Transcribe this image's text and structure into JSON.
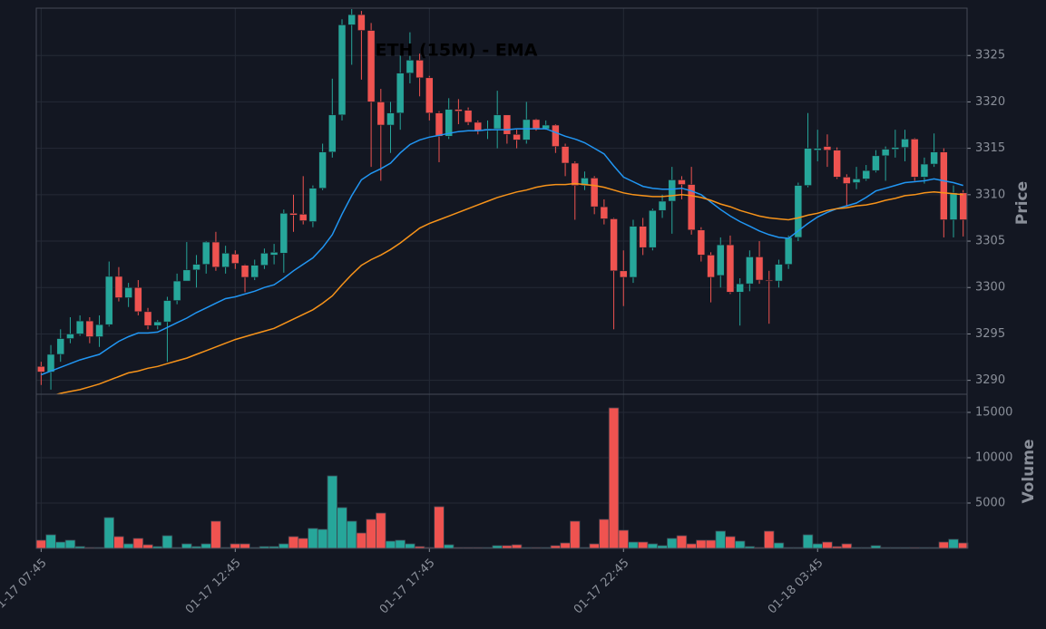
{
  "chart_data": [
    {
      "type": "candlestick",
      "title": "ETH (15M) - EMA",
      "ylabel": "Price",
      "up_color": "#26a69a",
      "down_color": "#ef5350",
      "grid": true,
      "xlim": [
        -0.5,
        95.4
      ],
      "ylim": [
        3288.5,
        3330.1
      ],
      "yticks": [
        3290,
        3295,
        3300,
        3305,
        3310,
        3315,
        3320,
        3325
      ],
      "open": [
        3291.5,
        3290.9,
        3292.8,
        3294.5,
        3295,
        3296.4,
        3294.7,
        3296,
        3301.2,
        3298.9,
        3300,
        3297.4,
        3295.9,
        3296.3,
        3298.6,
        3300.7,
        3301.9,
        3302.5,
        3304.9,
        3302.2,
        3303.6,
        3302.4,
        3301.1,
        3302.4,
        3303.5,
        3303.7,
        3308,
        3307.9,
        3307.1,
        3310.7,
        3314.6,
        3318.6,
        3328.3,
        3329.4,
        3327.7,
        3320,
        3317.5,
        3318.8,
        3323.1,
        3324.5,
        3322.6,
        3318.8,
        3316.3,
        3319.2,
        3319.1,
        3317.8,
        3316.9,
        3317.1,
        3318.6,
        3316.5,
        3315.9,
        3318.1,
        3317.1,
        3317.5,
        3315.2,
        3313.4,
        3311,
        3311.8,
        3308.7,
        3307.4,
        3301.8,
        3301.1,
        3306.6,
        3304.3,
        3308.3,
        3309.3,
        3311.6,
        3311.1,
        3306.2,
        3303.5,
        3301.3,
        3304.6,
        3299.5,
        3300.4,
        3303.3,
        3300.8,
        3300.7,
        3302.5,
        3305.4,
        3311,
        3314.8,
        3315.2,
        3314.8,
        3311.9,
        3311.3,
        3311.7,
        3312.6,
        3314.2,
        3314.9,
        3315.1,
        3316,
        3311.9,
        3313.3,
        3314.6,
        3307.3,
        3310.2
      ],
      "high": [
        3292,
        3293.8,
        3295.5,
        3296.8,
        3297,
        3296.8,
        3297,
        3302.8,
        3302.2,
        3300.5,
        3300.8,
        3297.8,
        3296.5,
        3299,
        3301.5,
        3304.9,
        3303.5,
        3305,
        3306,
        3304.5,
        3304,
        3302.5,
        3303,
        3304.2,
        3304.7,
        3308.4,
        3310,
        3312,
        3311,
        3315.5,
        3322.5,
        3328.9,
        3330,
        3329.8,
        3328.5,
        3321.4,
        3320,
        3325,
        3327.5,
        3325.2,
        3322.8,
        3319,
        3320.4,
        3320.3,
        3319.4,
        3318,
        3318,
        3321.2,
        3318.6,
        3317,
        3320,
        3318.2,
        3318,
        3317.6,
        3315.5,
        3313.6,
        3312.5,
        3312,
        3309.5,
        3307.5,
        3304,
        3307.3,
        3307.5,
        3308.5,
        3310,
        3313,
        3312,
        3313,
        3306.5,
        3303.8,
        3305.4,
        3305.6,
        3301,
        3304,
        3305,
        3301.8,
        3303,
        3305.6,
        3311.3,
        3318.8,
        3317,
        3316.5,
        3315.1,
        3312.2,
        3313,
        3313.2,
        3314.8,
        3315.2,
        3317,
        3317,
        3316.1,
        3314,
        3316.6,
        3315,
        3311,
        3310.5
      ],
      "low": [
        3289.5,
        3289,
        3292,
        3294,
        3294.8,
        3294,
        3293.6,
        3295.8,
        3298.5,
        3297.9,
        3297,
        3295.5,
        3295.5,
        3292,
        3298.2,
        3301,
        3300,
        3301.5,
        3301.8,
        3301.5,
        3302,
        3299.5,
        3300.8,
        3302,
        3302.5,
        3301.6,
        3306,
        3306.8,
        3306.5,
        3310.5,
        3314,
        3318,
        3324,
        3322.4,
        3313,
        3311.5,
        3314.5,
        3317,
        3322,
        3320.6,
        3318,
        3313.5,
        3316,
        3317.6,
        3317.5,
        3316.5,
        3316,
        3315,
        3315.5,
        3315,
        3315.5,
        3316.9,
        3317,
        3314.5,
        3312,
        3307.3,
        3310.5,
        3307.9,
        3306.8,
        3295.5,
        3298,
        3300.5,
        3303.5,
        3304,
        3307.5,
        3305.8,
        3309.5,
        3305.7,
        3302.8,
        3298.4,
        3300,
        3299.3,
        3295.9,
        3299.6,
        3300.4,
        3296.1,
        3300,
        3302,
        3305,
        3310.8,
        3313.6,
        3313,
        3311.7,
        3308.7,
        3310.6,
        3311.5,
        3312.4,
        3311.5,
        3314,
        3313.6,
        3311.5,
        3311.2,
        3313,
        3305.4,
        3305.4,
        3305.5
      ],
      "close": [
        3290.9,
        3292.8,
        3294.5,
        3295,
        3296.4,
        3294.7,
        3296,
        3301.2,
        3298.9,
        3300,
        3297.4,
        3295.9,
        3296.3,
        3298.6,
        3300.7,
        3301.9,
        3302.5,
        3304.9,
        3302.2,
        3303.7,
        3302.6,
        3301.1,
        3302.4,
        3303.7,
        3303.8,
        3308,
        3307.8,
        3307.2,
        3310.7,
        3314.6,
        3318.6,
        3328.3,
        3329.4,
        3327.7,
        3320,
        3317.5,
        3318.8,
        3323.1,
        3324.5,
        3322.6,
        3318.8,
        3316.3,
        3319.2,
        3319,
        3317.8,
        3316.9,
        3317.1,
        3318.6,
        3316.5,
        3315.9,
        3318.1,
        3317.1,
        3317.5,
        3315.2,
        3313.4,
        3311,
        3311.8,
        3308.7,
        3307.4,
        3301.8,
        3301.1,
        3306.6,
        3304.3,
        3308.3,
        3309.3,
        3311.6,
        3311.1,
        3306.2,
        3303.5,
        3301.1,
        3304.6,
        3299.5,
        3300.4,
        3303.3,
        3300.8,
        3300.7,
        3302.5,
        3305.4,
        3311,
        3315,
        3315,
        3314.8,
        3311.9,
        3311.2,
        3311.7,
        3312.6,
        3314.2,
        3314.9,
        3315.1,
        3316,
        3311.9,
        3313.3,
        3314.6,
        3307.3,
        3310.2,
        3307.3
      ],
      "series": [
        {
          "color": "#2196f3",
          "values": [
            3290.6,
            3291.0,
            3291.4,
            3291.8,
            3292.2,
            3292.5,
            3292.8,
            3293.5,
            3294.2,
            3294.7,
            3295.1,
            3295.1,
            3295.2,
            3295.7,
            3296.2,
            3296.7,
            3297.3,
            3297.8,
            3298.3,
            3298.8,
            3299.0,
            3299.3,
            3299.6,
            3300.0,
            3300.3,
            3301.0,
            3301.8,
            3302.5,
            3303.2,
            3304.3,
            3305.7,
            3307.9,
            3309.9,
            3311.6,
            3312.3,
            3312.8,
            3313.4,
            3314.5,
            3315.4,
            3315.9,
            3316.2,
            3316.4,
            3316.6,
            3316.8,
            3316.9,
            3316.9,
            3317.0,
            3317.0,
            3317.0,
            3317.1,
            3317.1,
            3317.1,
            3317.1,
            3316.7,
            3316.3,
            3316.0,
            3315.6,
            3315.0,
            3314.4,
            3313.1,
            3311.9,
            3311.4,
            3310.9,
            3310.7,
            3310.6,
            3310.6,
            3310.7,
            3310.4,
            3310.0,
            3309.2,
            3308.4,
            3307.7,
            3307.1,
            3306.6,
            3306.1,
            3305.7,
            3305.4,
            3305.3,
            3306.1,
            3306.9,
            3307.6,
            3308.1,
            3308.5,
            3308.8,
            3309.1,
            3309.7,
            3310.4,
            3310.7,
            3311.0,
            3311.3,
            3311.4,
            3311.5,
            3311.7,
            3311.5,
            3311.3,
            3311.0
          ]
        },
        {
          "color": "#f7931a",
          "values": [
            3288.0,
            3288.3,
            3288.6,
            3288.8,
            3289.0,
            3289.3,
            3289.6,
            3290.0,
            3290.4,
            3290.8,
            3291.0,
            3291.3,
            3291.5,
            3291.8,
            3292.1,
            3292.4,
            3292.8,
            3293.2,
            3293.6,
            3294.0,
            3294.4,
            3294.7,
            3295.0,
            3295.3,
            3295.6,
            3296.1,
            3296.6,
            3297.1,
            3297.6,
            3298.3,
            3299.1,
            3300.3,
            3301.4,
            3302.4,
            3303.0,
            3303.5,
            3304.1,
            3304.8,
            3305.6,
            3306.4,
            3306.9,
            3307.3,
            3307.7,
            3308.1,
            3308.5,
            3308.9,
            3309.3,
            3309.7,
            3310.0,
            3310.3,
            3310.5,
            3310.8,
            3311.0,
            3311.1,
            3311.1,
            3311.2,
            3311.1,
            3311.0,
            3310.8,
            3310.5,
            3310.2,
            3310.0,
            3309.9,
            3309.8,
            3309.8,
            3309.9,
            3310.0,
            3309.9,
            3309.7,
            3309.4,
            3309.0,
            3308.7,
            3308.3,
            3308.0,
            3307.7,
            3307.5,
            3307.4,
            3307.3,
            3307.5,
            3307.8,
            3308.0,
            3308.3,
            3308.5,
            3308.6,
            3308.8,
            3308.9,
            3309.1,
            3309.4,
            3309.6,
            3309.9,
            3310.0,
            3310.2,
            3310.3,
            3310.2,
            3310.1,
            3310.0
          ]
        }
      ]
    },
    {
      "type": "bar",
      "ylabel": "Volume",
      "grid": true,
      "xlim": [
        -0.5,
        95.4
      ],
      "ylim": [
        0,
        17000
      ],
      "yticks": [
        5000,
        10000,
        15000
      ],
      "xticks": [
        {
          "value": 0,
          "label": "01-17 07:45"
        },
        {
          "value": 20,
          "label": "01-17 12:45"
        },
        {
          "value": 40,
          "label": "01-17 17:45"
        },
        {
          "value": 60,
          "label": "01-17 22:45"
        },
        {
          "value": 80,
          "label": "01-18 03:45"
        }
      ],
      "values": [
        900,
        1500,
        700,
        900,
        200,
        100,
        100,
        3400,
        1300,
        500,
        1100,
        400,
        200,
        1400,
        100,
        500,
        200,
        500,
        3000,
        100,
        500,
        500,
        100,
        200,
        200,
        500,
        1300,
        1100,
        2200,
        2100,
        8000,
        4500,
        3000,
        1700,
        3200,
        3900,
        800,
        900,
        500,
        200,
        100,
        4600,
        400,
        100,
        100,
        100,
        100,
        300,
        300,
        400,
        100,
        100,
        100,
        300,
        600,
        3000,
        100,
        500,
        3200,
        15500,
        2000,
        700,
        700,
        500,
        300,
        1100,
        1400,
        500,
        900,
        900,
        1900,
        1300,
        800,
        200,
        100,
        1900,
        600,
        100,
        100,
        1500,
        500,
        700,
        200,
        500,
        100,
        100,
        300,
        100,
        100,
        100,
        100,
        100,
        100,
        700,
        1000,
        600
      ]
    }
  ]
}
